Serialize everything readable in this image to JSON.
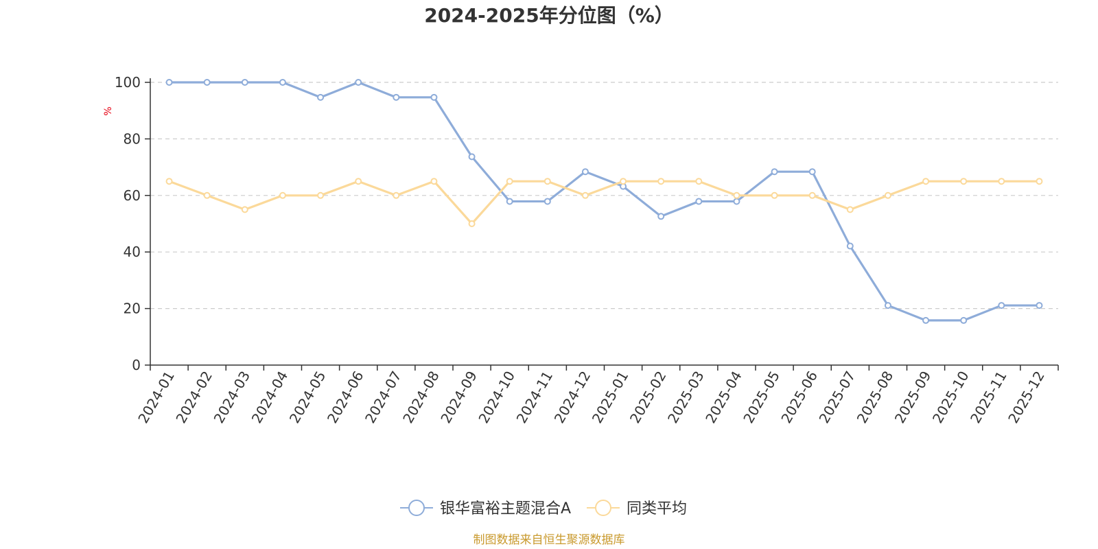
{
  "chart_data": {
    "type": "line",
    "title": "2024-2025年分位图（%）",
    "ylabel": "%",
    "xlabel": "",
    "ylim": [
      0,
      100
    ],
    "yticks": [
      0,
      20,
      40,
      60,
      80,
      100
    ],
    "grid": "horizontal dashed",
    "legend_position": "bottom-center",
    "categories": [
      "2024-01",
      "2024-02",
      "2024-03",
      "2024-04",
      "2024-05",
      "2024-06",
      "2024-07",
      "2024-08",
      "2024-09",
      "2024-10",
      "2024-11",
      "2024-12",
      "2025-01",
      "2025-02",
      "2025-03",
      "2025-04",
      "2025-05",
      "2025-06",
      "2025-07",
      "2025-08",
      "2025-09",
      "2025-10",
      "2025-11",
      "2025-12"
    ],
    "series": [
      {
        "name": "银华富裕主题混合A",
        "color": "#8eacd9",
        "values": [
          100,
          100,
          100,
          100,
          94.7,
          100,
          94.7,
          94.7,
          73.7,
          57.9,
          57.9,
          68.4,
          63.2,
          52.6,
          57.9,
          57.9,
          68.4,
          68.4,
          42.1,
          21.1,
          15.8,
          15.8,
          21.1,
          21.1
        ]
      },
      {
        "name": "同类平均",
        "color": "#fbd99a",
        "values": [
          65,
          60,
          55,
          60,
          60,
          65,
          60,
          65,
          50,
          65,
          65,
          60,
          65,
          65,
          65,
          60,
          60,
          60,
          55,
          60,
          65,
          65,
          65,
          65
        ]
      }
    ]
  },
  "source": "制图数据来自恒生聚源数据库"
}
